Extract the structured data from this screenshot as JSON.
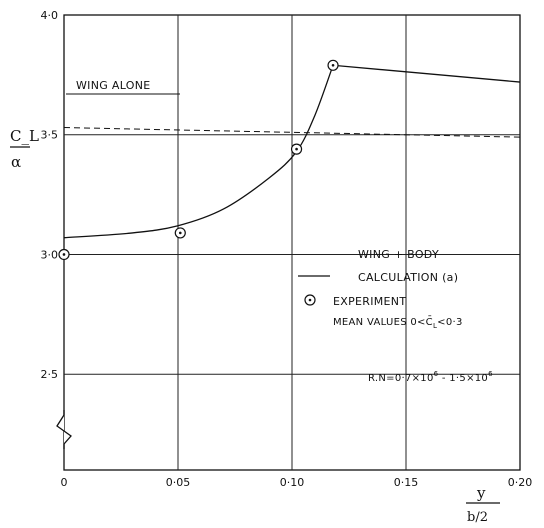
{
  "chart_data": {
    "type": "line",
    "x_ticks": [
      "0",
      "0·05",
      "0·10",
      "0·15",
      "0·20"
    ],
    "y_ticks": [
      "2·5",
      "3·0",
      "3·5",
      "4·0"
    ],
    "xlim": [
      0,
      0.2
    ],
    "ylim": [
      2.1,
      4.0
    ],
    "ylabel_top": "C_L",
    "ylabel_bottom": "α",
    "xlabel_top": "y",
    "xlabel_bottom": "b/2",
    "grid": true,
    "series": [
      {
        "name": "CALCULATION (a)",
        "x": [
          0,
          0.03,
          0.05,
          0.07,
          0.09,
          0.102,
          0.11,
          0.118,
          0.2
        ],
        "y": [
          3.07,
          3.09,
          3.12,
          3.19,
          3.32,
          3.43,
          3.58,
          3.79,
          3.72
        ]
      },
      {
        "name": "EXPERIMENT",
        "x": [
          0,
          0.051,
          0.102,
          0.118
        ],
        "y": [
          3.0,
          3.09,
          3.44,
          3.79
        ]
      },
      {
        "name": "WING ALONE",
        "x": [
          0,
          0.2
        ],
        "y": [
          3.53,
          3.49
        ]
      }
    ],
    "annotations": {
      "wing_alone": "WING ALONE",
      "legend_title": "WING + BODY",
      "legend_calc": "CALCULATION (a)",
      "legend_exp": "EXPERIMENT",
      "legend_mean_1": "MEAN VALUES 0<",
      "legend_mean_cl": "C̄",
      "legend_mean_sub": "L",
      "legend_mean_2": "<0·3",
      "rn_1": "R.N=0·7×10",
      "rn_exp1": "6",
      "rn_2": " - 1·5×10",
      "rn_exp2": "6"
    },
    "legend_position": "right"
  }
}
